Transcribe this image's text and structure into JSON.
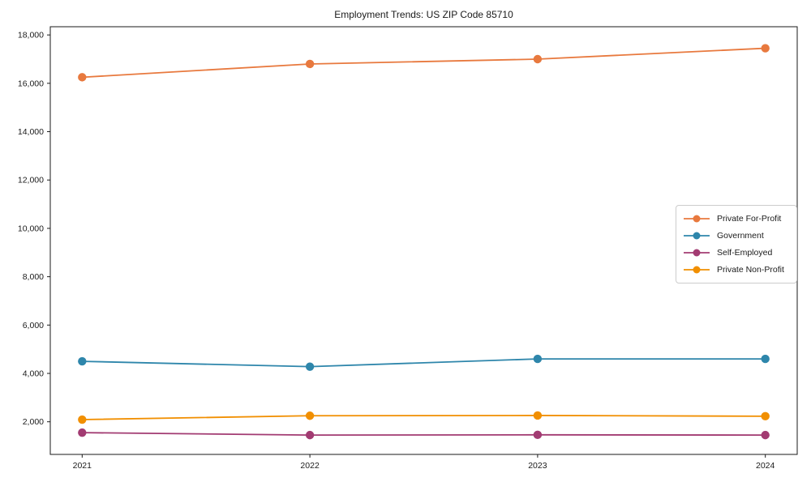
{
  "chart_data": {
    "type": "line",
    "title": "Employment Trends: US ZIP Code 85710",
    "x": [
      2021,
      2022,
      2023,
      2024
    ],
    "x_tick_labels": [
      "2021",
      "2022",
      "2023",
      "2024"
    ],
    "series": [
      {
        "name": "Private For-Profit",
        "color": "#e8793e",
        "values": [
          16250,
          16800,
          17000,
          17450
        ]
      },
      {
        "name": "Government",
        "color": "#2e86ab",
        "values": [
          4500,
          4280,
          4600,
          4600
        ]
      },
      {
        "name": "Self-Employed",
        "color": "#a23b72",
        "values": [
          1550,
          1450,
          1460,
          1450
        ]
      },
      {
        "name": "Private Non-Profit",
        "color": "#f18f01",
        "values": [
          2090,
          2250,
          2260,
          2230
        ]
      }
    ],
    "xlim": [
      2020.86,
      2024.14
    ],
    "ylim": [
      650,
      18340
    ],
    "yticks": [
      2000,
      4000,
      6000,
      8000,
      10000,
      12000,
      14000,
      16000,
      18000
    ],
    "grid": false,
    "legend_position": "center-right",
    "axis_color": "#1a1a1a"
  }
}
